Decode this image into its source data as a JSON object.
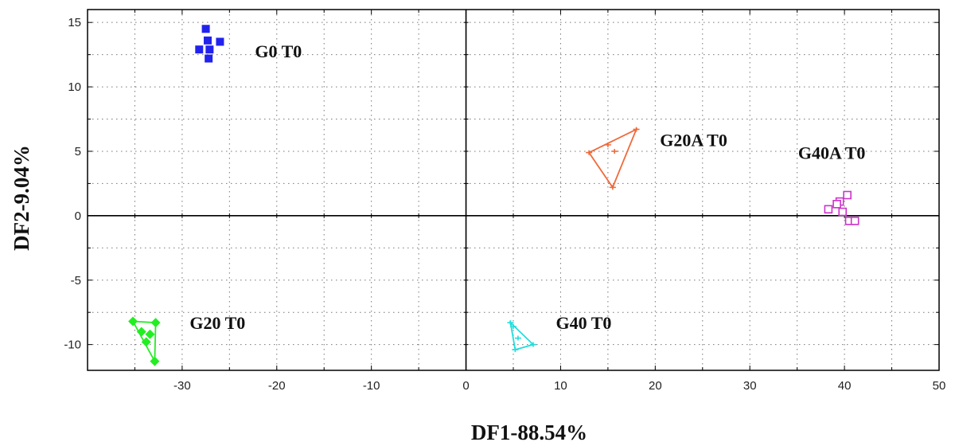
{
  "chart_data": {
    "type": "scatter",
    "title": "",
    "xlabel": "DF1-88.54%",
    "ylabel": "DF2-9.04%",
    "xlim": [
      -40,
      50
    ],
    "ylim": [
      -12,
      16
    ],
    "x_ticks": [
      -30,
      -20,
      -10,
      0,
      10,
      20,
      30,
      40,
      50
    ],
    "y_ticks": [
      15,
      10,
      5,
      0,
      -5,
      -10
    ],
    "x_tick_labels": [
      "-30",
      "-20",
      "-10",
      "0",
      "10",
      "20",
      "30",
      "40",
      "50"
    ],
    "y_tick_labels": [
      "15",
      "10",
      "5",
      "0",
      "-5",
      "-10"
    ],
    "grid": "dotted",
    "legend": "none",
    "series": [
      {
        "name": "G0 T0",
        "color": "#2222ee",
        "marker": "filled-square",
        "hull": false,
        "points": [
          [
            -27.5,
            14.5
          ],
          [
            -27.3,
            13.6
          ],
          [
            -26.0,
            13.5
          ],
          [
            -28.2,
            12.9
          ],
          [
            -27.1,
            12.9
          ],
          [
            -27.2,
            12.2
          ]
        ]
      },
      {
        "name": "G20 T0",
        "color": "#22ee22",
        "marker": "filled-diamond",
        "hull": true,
        "points": [
          [
            -35.2,
            -8.2
          ],
          [
            -32.8,
            -8.3
          ],
          [
            -34.3,
            -9.0
          ],
          [
            -33.4,
            -9.2
          ],
          [
            -33.8,
            -9.8
          ],
          [
            -32.9,
            -11.3
          ]
        ]
      },
      {
        "name": "G20A T0",
        "color": "#f06a3c",
        "marker": "tick",
        "hull": true,
        "points": [
          [
            18.0,
            6.7
          ],
          [
            13.0,
            4.9
          ],
          [
            15.0,
            5.5
          ],
          [
            15.7,
            5.0
          ],
          [
            15.5,
            2.2
          ]
        ]
      },
      {
        "name": "G40A T0",
        "color": "#cc33cc",
        "marker": "open-square",
        "hull": false,
        "points": [
          [
            40.3,
            1.6
          ],
          [
            39.5,
            1.1
          ],
          [
            39.2,
            0.9
          ],
          [
            38.3,
            0.5
          ],
          [
            39.8,
            0.3
          ],
          [
            40.5,
            -0.4
          ],
          [
            41.1,
            -0.4
          ]
        ]
      },
      {
        "name": "G40 T0",
        "color": "#22dddd",
        "marker": "tick",
        "hull": true,
        "points": [
          [
            4.7,
            -8.3
          ],
          [
            5.0,
            -8.6
          ],
          [
            5.5,
            -9.5
          ],
          [
            7.1,
            -10.0
          ],
          [
            5.2,
            -10.4
          ]
        ]
      }
    ],
    "annotations": [
      {
        "text": "G0 T0",
        "x": -22.3,
        "y": 12.3
      },
      {
        "text": "G20A T0",
        "x": 20.5,
        "y": 5.4
      },
      {
        "text": "G40A T0",
        "x": 35.1,
        "y": 4.4
      },
      {
        "text": "G20 T0",
        "x": -29.2,
        "y": -8.8
      },
      {
        "text": "G40 T0",
        "x": 9.5,
        "y": -8.8
      }
    ]
  }
}
